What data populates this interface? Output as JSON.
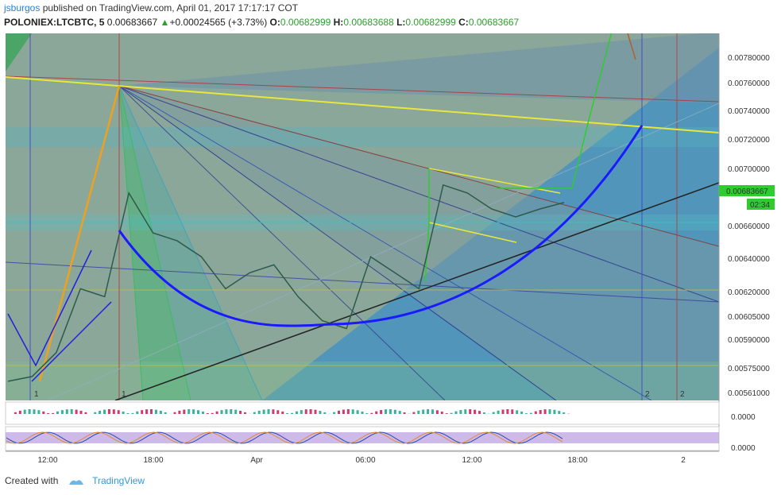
{
  "header": {
    "username": "jsburgos",
    "published_text": "published on TradingView.com, April 01, 2017 17:17:17 COT",
    "symbol": "POLONIEX:LTCBTC, 5",
    "last": "0.00683667",
    "change_arrow": "▲",
    "change": "+0.00024565 (+3.73%)",
    "o_label": "O:",
    "o_value": "0.00682999",
    "h_label": "H:",
    "h_value": "0.00683688",
    "l_label": "L:",
    "l_value": "0.00682999",
    "c_label": "C:",
    "c_value": "0.00683667"
  },
  "footer": {
    "created_with": "Created with",
    "brand": "TradingView"
  },
  "chart_data": {
    "type": "line",
    "title": "POLONIEX:LTCBTC, 5",
    "y_ticks": [
      "0.00780000",
      "0.00760000",
      "0.00740000",
      "0.00720000",
      "0.00700000",
      "0.00660000",
      "0.00640000",
      "0.00620000",
      "0.00605000",
      "0.00590000",
      "0.00575000",
      "0.00561000"
    ],
    "ylim": [
      0.0056,
      0.0079
    ],
    "x_ticks": [
      "12:00",
      "18:00",
      "Apr",
      "06:00",
      "12:00",
      "18:00",
      "2"
    ],
    "last_price_label": "0.00683667",
    "countdown_label": "02:34",
    "indicator1_tick": "0.0000",
    "indicator2_tick": "0.0000",
    "markers": [
      "1",
      "1",
      "2",
      "2"
    ],
    "price_series": [
      {
        "t": 0,
        "v": 0.00572
      },
      {
        "t": 1,
        "v": 0.00575
      },
      {
        "t": 2,
        "v": 0.0059
      },
      {
        "t": 3,
        "v": 0.0063
      },
      {
        "t": 4,
        "v": 0.00625
      },
      {
        "t": 5,
        "v": 0.0069
      },
      {
        "t": 6,
        "v": 0.00665
      },
      {
        "t": 7,
        "v": 0.0066
      },
      {
        "t": 8,
        "v": 0.0065
      },
      {
        "t": 9,
        "v": 0.0063
      },
      {
        "t": 10,
        "v": 0.0064
      },
      {
        "t": 11,
        "v": 0.00645
      },
      {
        "t": 12,
        "v": 0.00625
      },
      {
        "t": 13,
        "v": 0.0061
      },
      {
        "t": 14,
        "v": 0.00605
      },
      {
        "t": 15,
        "v": 0.0065
      },
      {
        "t": 16,
        "v": 0.0064
      },
      {
        "t": 17,
        "v": 0.0063
      },
      {
        "t": 18,
        "v": 0.00695
      },
      {
        "t": 19,
        "v": 0.0069
      },
      {
        "t": 20,
        "v": 0.0068
      },
      {
        "t": 21,
        "v": 0.00675
      },
      {
        "t": 22,
        "v": 0.0068
      },
      {
        "t": 23,
        "v": 0.00684
      }
    ],
    "colors": {
      "background_blue": "#3e8fc4",
      "cup_curve": "#1a1aff",
      "resistance": "#e8e83a",
      "support": "#222222",
      "green_box": "#2ecc2e",
      "price": "#2e5a4a"
    }
  }
}
